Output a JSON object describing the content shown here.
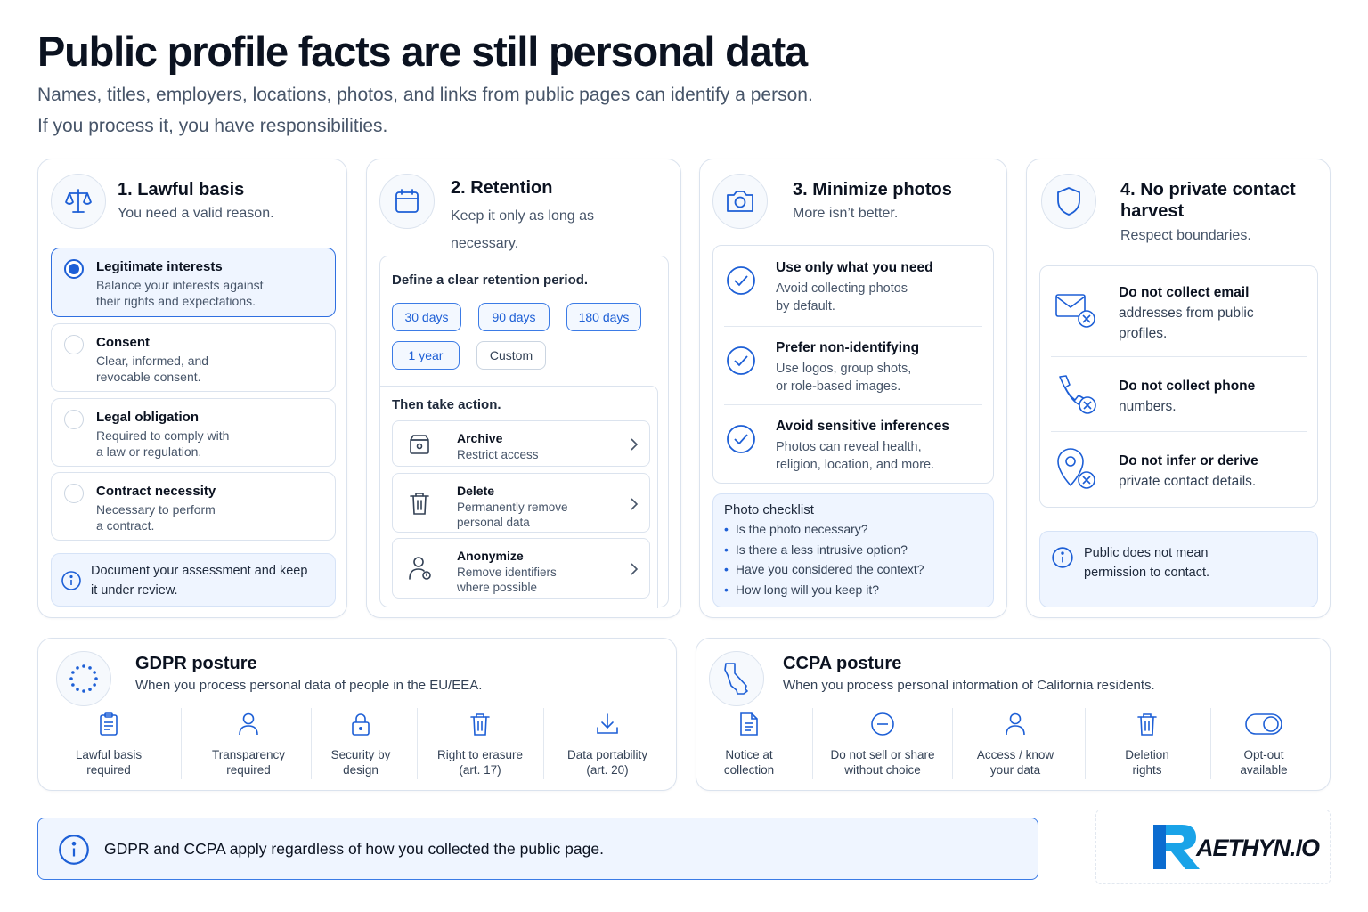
{
  "header": {
    "title": "Public profile facts are still personal data",
    "subtitle_line1": "Names, titles, employers, locations, photos, and links from public pages can identify a person.",
    "subtitle_line2": "If you process it, you have responsibilities."
  },
  "lawful": {
    "title": "1. Lawful basis",
    "subtitle": "You need a valid reason.",
    "options": [
      {
        "title": "Legitimate interests",
        "desc1": "Balance your interests against",
        "desc2": "their rights and expectations.",
        "selected": true
      },
      {
        "title": "Consent",
        "desc1": "Clear, informed, and",
        "desc2": "revocable consent.",
        "selected": false
      },
      {
        "title": "Legal obligation",
        "desc1": "Required to comply with",
        "desc2": "a law or regulation.",
        "selected": false
      },
      {
        "title": "Contract necessity",
        "desc1": "Necessary to perform",
        "desc2": "a contract.",
        "selected": false
      }
    ],
    "note1": "Document your assessment and keep",
    "note2": "it under review."
  },
  "retention": {
    "title": "2. Retention",
    "subtitle1": "Keep it only as long as",
    "subtitle2": "necessary.",
    "period_heading": "Define a clear retention period.",
    "chips": [
      "30 days",
      "90 days",
      "180 days",
      "1 year",
      "Custom"
    ],
    "action_heading": "Then take action.",
    "actions": [
      {
        "title": "Archive",
        "desc1": "Restrict access",
        "desc2": ""
      },
      {
        "title": "Delete",
        "desc1": "Permanently remove",
        "desc2": "personal data"
      },
      {
        "title": "Anonymize",
        "desc1": "Remove identifiers",
        "desc2": "where possible"
      }
    ]
  },
  "photos": {
    "title": "3. Minimize photos",
    "subtitle": "More isn’t better.",
    "items": [
      {
        "title": "Use only what you need",
        "desc1": "Avoid collecting photos",
        "desc2": "by default."
      },
      {
        "title": "Prefer non-identifying",
        "desc1": "Use logos, group shots,",
        "desc2": "or role-based images."
      },
      {
        "title": "Avoid sensitive inferences",
        "desc1": "Photos can reveal health,",
        "desc2": "religion, location, and more."
      }
    ],
    "checklist_title": "Photo checklist",
    "checklist": [
      "Is the photo necessary?",
      "Is there a less intrusive option?",
      "Have you considered the context?",
      "How long will you keep it?"
    ]
  },
  "contact": {
    "title1": "4. No private contact",
    "title2": "harvest",
    "subtitle": "Respect boundaries.",
    "items": [
      {
        "line1": "Do not collect email",
        "line2": "addresses from public",
        "line3": "profiles."
      },
      {
        "line1": "Do not collect phone",
        "line2": "numbers.",
        "line3": ""
      },
      {
        "line1": "Do not infer or derive",
        "line2": "private contact details.",
        "line3": ""
      }
    ],
    "note1": "Public does not mean",
    "note2": "permission to contact."
  },
  "gdpr": {
    "title": "GDPR posture",
    "subtitle": "When you process personal data of people in the EU/EEA.",
    "items": [
      {
        "icon": "clipboard-icon",
        "line1": "Lawful basis",
        "line2": "required"
      },
      {
        "icon": "person-icon",
        "line1": "Transparency",
        "line2": "required"
      },
      {
        "icon": "lock-icon",
        "line1": "Security by",
        "line2": "design"
      },
      {
        "icon": "trash-icon",
        "line1": "Right to erasure",
        "line2": "(art. 17)"
      },
      {
        "icon": "download-icon",
        "line1": "Data portability",
        "line2": "(art. 20)"
      }
    ]
  },
  "ccpa": {
    "title": "CCPA posture",
    "subtitle": "When you process personal information of California residents.",
    "items": [
      {
        "icon": "document-icon",
        "line1": "Notice at",
        "line2": "collection"
      },
      {
        "icon": "minus-circle-icon",
        "line1": "Do not sell or share",
        "line2": "without choice"
      },
      {
        "icon": "person-icon",
        "line1": "Access / know",
        "line2": "your data"
      },
      {
        "icon": "trash-icon",
        "line1": "Deletion",
        "line2": "rights"
      },
      {
        "icon": "toggle-icon",
        "line1": "Opt-out",
        "line2": "available"
      }
    ]
  },
  "footer": {
    "banner": "GDPR and CCPA apply regardless of how you collected the public page.",
    "logo_text": "AETHYN.IO"
  },
  "colors": {
    "accent": "#1d5fd6",
    "border": "#dbe3ee",
    "tint": "#eff5ff",
    "text": "#0b1220",
    "muted": "#475569"
  }
}
